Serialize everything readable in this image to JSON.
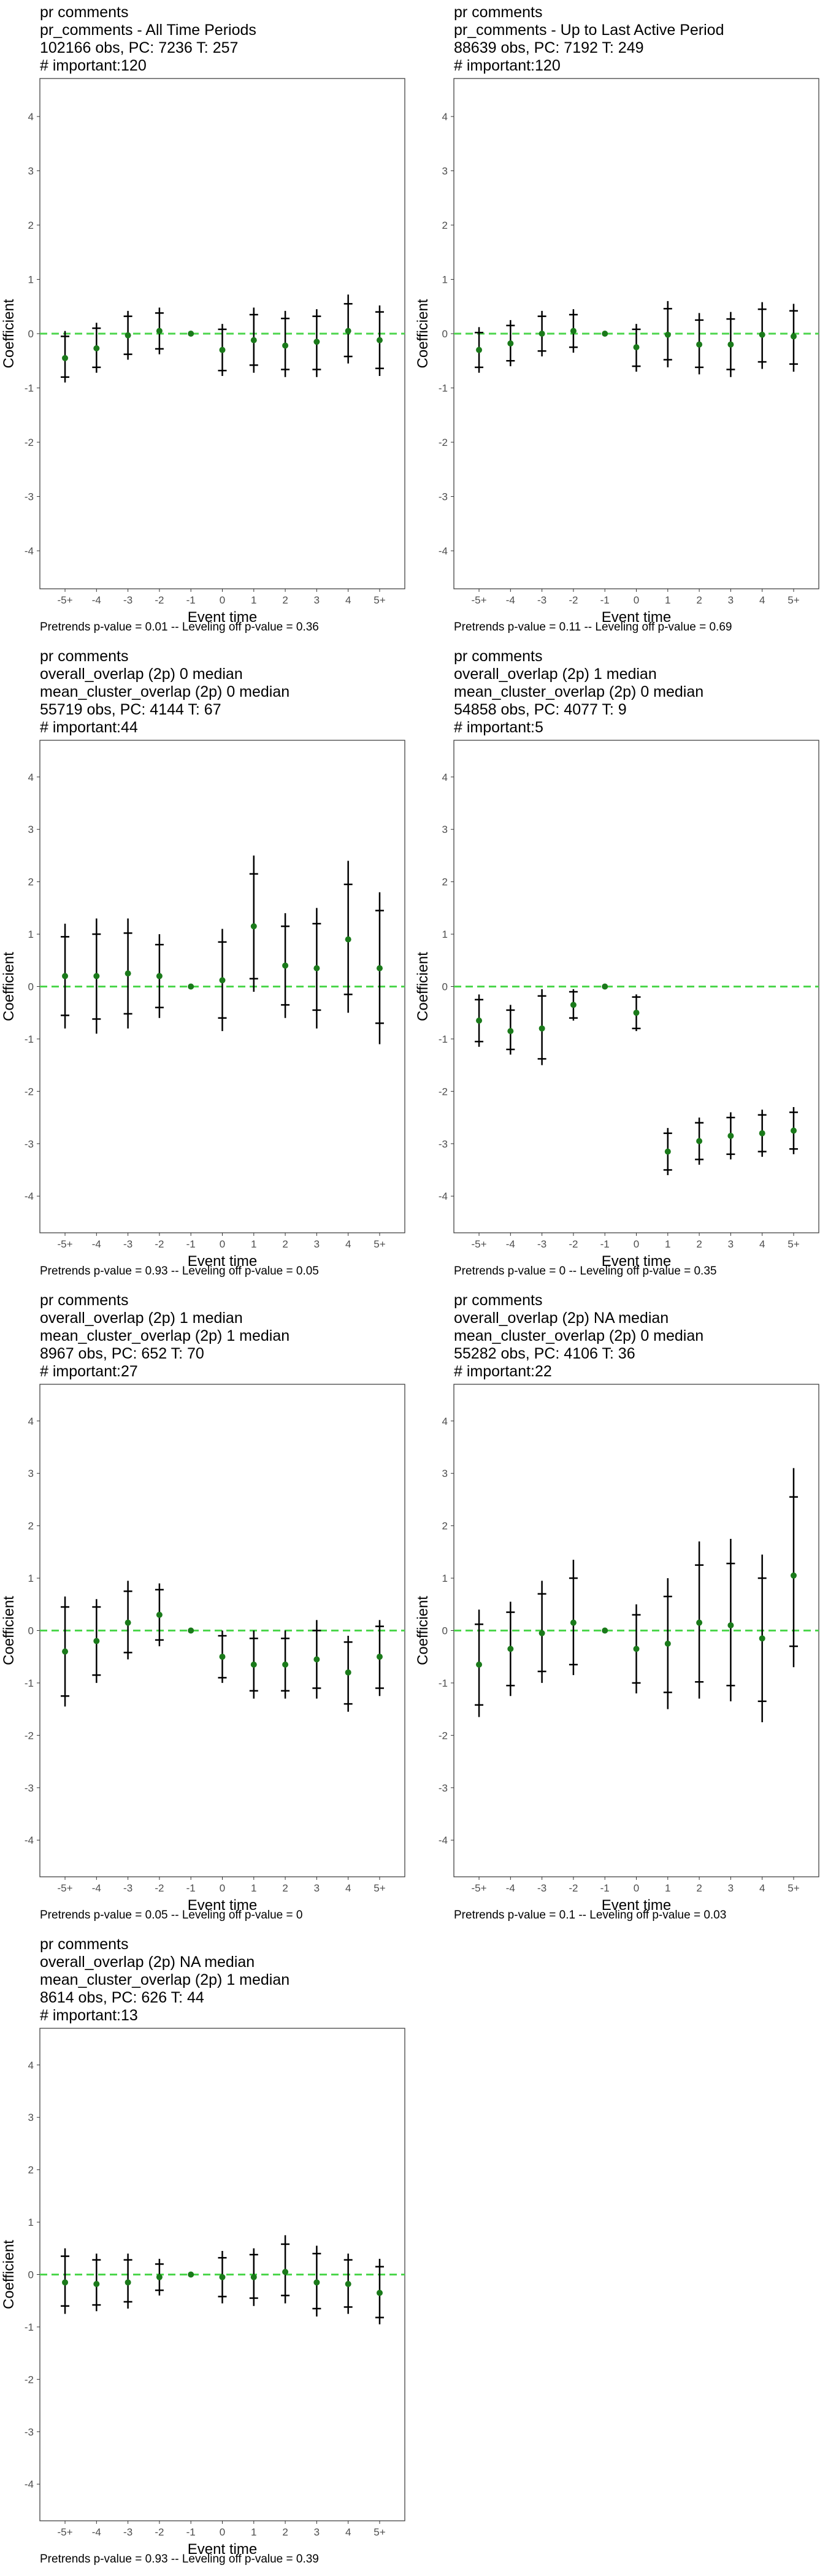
{
  "chart_data": [
    {
      "type": "scatter",
      "title_lines": [
        "pr comments",
        "pr_comments - All Time Periods",
        "102166 obs, PC: 7236 T: 257",
        "# important:120"
      ],
      "xlabel": "Event time",
      "ylabel": "Coefficient",
      "categories": [
        "-5+",
        "-4",
        "-3",
        "-2",
        "-1",
        "0",
        "1",
        "2",
        "3",
        "4",
        "5+"
      ],
      "yticks": [
        "4",
        "3",
        "2",
        "1",
        "0",
        "-1",
        "-2",
        "-3",
        "-4"
      ],
      "ylim": [
        -4.7,
        4.7
      ],
      "estimate": [
        -0.45,
        -0.27,
        -0.03,
        0.05,
        0,
        -0.3,
        -0.12,
        -0.22,
        -0.15,
        0.05,
        -0.12
      ],
      "ci95": [
        [
          -0.9,
          0.05
        ],
        [
          -0.72,
          0.2
        ],
        [
          -0.48,
          0.42
        ],
        [
          -0.38,
          0.48
        ],
        [
          0,
          0
        ],
        [
          -0.78,
          0.18
        ],
        [
          -0.72,
          0.48
        ],
        [
          -0.8,
          0.42
        ],
        [
          -0.8,
          0.45
        ],
        [
          -0.55,
          0.72
        ],
        [
          -0.78,
          0.52
        ]
      ],
      "ci90": [
        [
          -0.8,
          -0.05
        ],
        [
          -0.62,
          0.1
        ],
        [
          -0.38,
          0.32
        ],
        [
          -0.28,
          0.38
        ],
        [
          0,
          0
        ],
        [
          -0.68,
          0.08
        ],
        [
          -0.58,
          0.35
        ],
        [
          -0.66,
          0.28
        ],
        [
          -0.66,
          0.32
        ],
        [
          -0.42,
          0.55
        ],
        [
          -0.64,
          0.4
        ]
      ],
      "reference_line": 0,
      "footnote": "Pretrends p-value = 0.01 -- Leveling off p-value = 0.36"
    },
    {
      "type": "scatter",
      "title_lines": [
        "pr comments",
        "pr_comments - Up to Last Active Period",
        "88639 obs, PC: 7192 T: 249",
        "# important:120"
      ],
      "xlabel": "Event time",
      "ylabel": "Coefficient",
      "categories": [
        "-5+",
        "-4",
        "-3",
        "-2",
        "-1",
        "0",
        "1",
        "2",
        "3",
        "4",
        "5+"
      ],
      "yticks": [
        "4",
        "3",
        "2",
        "1",
        "0",
        "-1",
        "-2",
        "-3",
        "-4"
      ],
      "ylim": [
        -4.7,
        4.7
      ],
      "estimate": [
        -0.3,
        -0.18,
        0.0,
        0.05,
        0,
        -0.25,
        -0.02,
        -0.2,
        -0.2,
        -0.02,
        -0.05
      ],
      "ci95": [
        [
          -0.72,
          0.12
        ],
        [
          -0.6,
          0.25
        ],
        [
          -0.42,
          0.42
        ],
        [
          -0.35,
          0.45
        ],
        [
          0,
          0
        ],
        [
          -0.7,
          0.18
        ],
        [
          -0.62,
          0.6
        ],
        [
          -0.75,
          0.38
        ],
        [
          -0.8,
          0.4
        ],
        [
          -0.65,
          0.58
        ],
        [
          -0.7,
          0.55
        ]
      ],
      "ci90": [
        [
          -0.62,
          0.02
        ],
        [
          -0.5,
          0.15
        ],
        [
          -0.32,
          0.32
        ],
        [
          -0.25,
          0.35
        ],
        [
          0,
          0
        ],
        [
          -0.6,
          0.08
        ],
        [
          -0.48,
          0.46
        ],
        [
          -0.62,
          0.25
        ],
        [
          -0.66,
          0.27
        ],
        [
          -0.52,
          0.45
        ],
        [
          -0.56,
          0.42
        ]
      ],
      "reference_line": 0,
      "footnote": "Pretrends p-value = 0.11 -- Leveling off p-value = 0.69"
    },
    {
      "type": "scatter",
      "title_lines": [
        "pr comments",
        "overall_overlap (2p) 0 median",
        "mean_cluster_overlap (2p) 0 median",
        "55719 obs, PC: 4144 T: 67",
        "# important:44"
      ],
      "xlabel": "Event time",
      "ylabel": "Coefficient",
      "categories": [
        "-5+",
        "-4",
        "-3",
        "-2",
        "-1",
        "0",
        "1",
        "2",
        "3",
        "4",
        "5+"
      ],
      "yticks": [
        "4",
        "3",
        "2",
        "1",
        "0",
        "-1",
        "-2",
        "-3",
        "-4"
      ],
      "ylim": [
        -4.7,
        4.7
      ],
      "estimate": [
        0.2,
        0.2,
        0.25,
        0.2,
        0,
        0.12,
        1.15,
        0.4,
        0.35,
        0.9,
        0.35
      ],
      "ci95": [
        [
          -0.8,
          1.2
        ],
        [
          -0.9,
          1.3
        ],
        [
          -0.8,
          1.3
        ],
        [
          -0.6,
          1.0
        ],
        [
          0,
          0
        ],
        [
          -0.85,
          1.1
        ],
        [
          -0.1,
          2.5
        ],
        [
          -0.6,
          1.4
        ],
        [
          -0.8,
          1.5
        ],
        [
          -0.5,
          2.4
        ],
        [
          -1.1,
          1.8
        ]
      ],
      "ci90": [
        [
          -0.55,
          0.95
        ],
        [
          -0.62,
          1.0
        ],
        [
          -0.52,
          1.02
        ],
        [
          -0.4,
          0.8
        ],
        [
          0,
          0
        ],
        [
          -0.6,
          0.85
        ],
        [
          0.15,
          2.15
        ],
        [
          -0.35,
          1.15
        ],
        [
          -0.45,
          1.2
        ],
        [
          -0.15,
          1.95
        ],
        [
          -0.7,
          1.45
        ]
      ],
      "reference_line": 0,
      "footnote": "Pretrends p-value = 0.93 -- Leveling off p-value = 0.05"
    },
    {
      "type": "scatter",
      "title_lines": [
        "pr comments",
        "overall_overlap (2p) 1 median",
        "mean_cluster_overlap (2p) 0 median",
        "54858 obs, PC: 4077 T: 9",
        "# important:5"
      ],
      "xlabel": "Event time",
      "ylabel": "Coefficient",
      "categories": [
        "-5+",
        "-4",
        "-3",
        "-2",
        "-1",
        "0",
        "1",
        "2",
        "3",
        "4",
        "5+"
      ],
      "yticks": [
        "4",
        "3",
        "2",
        "1",
        "0",
        "-1",
        "-2",
        "-3",
        "-4"
      ],
      "ylim": [
        -4.7,
        4.7
      ],
      "estimate": [
        -0.65,
        -0.85,
        -0.8,
        -0.35,
        0,
        -0.5,
        -3.15,
        -2.95,
        -2.85,
        -2.8,
        -2.75
      ],
      "ci95": [
        [
          -1.15,
          -0.15
        ],
        [
          -1.3,
          -0.35
        ],
        [
          -1.5,
          -0.05
        ],
        [
          -0.65,
          -0.05
        ],
        [
          0,
          0
        ],
        [
          -0.85,
          -0.15
        ],
        [
          -3.6,
          -2.7
        ],
        [
          -3.4,
          -2.5
        ],
        [
          -3.3,
          -2.4
        ],
        [
          -3.25,
          -2.35
        ],
        [
          -3.2,
          -2.3
        ]
      ],
      "ci90": [
        [
          -1.05,
          -0.25
        ],
        [
          -1.2,
          -0.45
        ],
        [
          -1.38,
          -0.18
        ],
        [
          -0.6,
          -0.1
        ],
        [
          0,
          0
        ],
        [
          -0.8,
          -0.2
        ],
        [
          -3.5,
          -2.8
        ],
        [
          -3.3,
          -2.6
        ],
        [
          -3.2,
          -2.5
        ],
        [
          -3.15,
          -2.45
        ],
        [
          -3.1,
          -2.4
        ]
      ],
      "reference_line": 0,
      "footnote": "Pretrends p-value = 0 -- Leveling off p-value = 0.35"
    },
    {
      "type": "scatter",
      "title_lines": [
        "pr comments",
        "overall_overlap (2p) 1 median",
        "mean_cluster_overlap (2p) 1 median",
        "8967 obs, PC: 652 T: 70",
        "# important:27"
      ],
      "xlabel": "Event time",
      "ylabel": "Coefficient",
      "categories": [
        "-5+",
        "-4",
        "-3",
        "-2",
        "-1",
        "0",
        "1",
        "2",
        "3",
        "4",
        "5+"
      ],
      "yticks": [
        "4",
        "3",
        "2",
        "1",
        "0",
        "-1",
        "-2",
        "-3",
        "-4"
      ],
      "ylim": [
        -4.7,
        4.7
      ],
      "estimate": [
        -0.4,
        -0.2,
        0.15,
        0.3,
        0,
        -0.5,
        -0.65,
        -0.65,
        -0.55,
        -0.8,
        -0.5
      ],
      "ci95": [
        [
          -1.45,
          0.65
        ],
        [
          -1.0,
          0.6
        ],
        [
          -0.55,
          0.95
        ],
        [
          -0.3,
          0.9
        ],
        [
          0,
          0
        ],
        [
          -1.0,
          0.0
        ],
        [
          -1.3,
          0.0
        ],
        [
          -1.3,
          0.0
        ],
        [
          -1.3,
          0.2
        ],
        [
          -1.55,
          -0.1
        ],
        [
          -1.25,
          0.2
        ]
      ],
      "ci90": [
        [
          -1.25,
          0.45
        ],
        [
          -0.85,
          0.45
        ],
        [
          -0.42,
          0.75
        ],
        [
          -0.18,
          0.78
        ],
        [
          0,
          0
        ],
        [
          -0.9,
          -0.1
        ],
        [
          -1.15,
          -0.15
        ],
        [
          -1.15,
          -0.15
        ],
        [
          -1.1,
          0.0
        ],
        [
          -1.4,
          -0.22
        ],
        [
          -1.1,
          0.08
        ]
      ],
      "reference_line": 0,
      "footnote": "Pretrends p-value = 0.05 -- Leveling off p-value = 0"
    },
    {
      "type": "scatter",
      "title_lines": [
        "pr comments",
        "overall_overlap (2p) NA median",
        "mean_cluster_overlap (2p) 0 median",
        "55282 obs, PC: 4106 T: 36",
        "# important:22"
      ],
      "xlabel": "Event time",
      "ylabel": "Coefficient",
      "categories": [
        "-5+",
        "-4",
        "-3",
        "-2",
        "-1",
        "0",
        "1",
        "2",
        "3",
        "4",
        "5+"
      ],
      "yticks": [
        "4",
        "3",
        "2",
        "1",
        "0",
        "-1",
        "-2",
        "-3",
        "-4"
      ],
      "ylim": [
        -4.7,
        4.7
      ],
      "estimate": [
        -0.65,
        -0.35,
        -0.05,
        0.15,
        0,
        -0.35,
        -0.25,
        0.15,
        0.1,
        -0.15,
        1.05
      ],
      "ci95": [
        [
          -1.65,
          0.4
        ],
        [
          -1.25,
          0.55
        ],
        [
          -1.0,
          0.95
        ],
        [
          -0.85,
          1.35
        ],
        [
          0,
          0
        ],
        [
          -1.2,
          0.5
        ],
        [
          -1.5,
          1.0
        ],
        [
          -1.3,
          1.7
        ],
        [
          -1.35,
          1.75
        ],
        [
          -1.75,
          1.45
        ],
        [
          -0.7,
          3.1
        ]
      ],
      "ci90": [
        [
          -1.42,
          0.12
        ],
        [
          -1.05,
          0.35
        ],
        [
          -0.78,
          0.7
        ],
        [
          -0.65,
          1.0
        ],
        [
          0,
          0
        ],
        [
          -1.0,
          0.3
        ],
        [
          -1.18,
          0.65
        ],
        [
          -0.98,
          1.25
        ],
        [
          -1.05,
          1.28
        ],
        [
          -1.35,
          1.0
        ],
        [
          -0.3,
          2.55
        ]
      ],
      "reference_line": 0,
      "footnote": "Pretrends p-value = 0.1 -- Leveling off p-value = 0.03"
    },
    {
      "type": "scatter",
      "title_lines": [
        "pr comments",
        "overall_overlap (2p) NA median",
        "mean_cluster_overlap (2p) 1 median",
        "8614 obs, PC: 626 T: 44",
        "# important:13"
      ],
      "xlabel": "Event time",
      "ylabel": "Coefficient",
      "categories": [
        "-5+",
        "-4",
        "-3",
        "-2",
        "-1",
        "0",
        "1",
        "2",
        "3",
        "4",
        "5+"
      ],
      "yticks": [
        "4",
        "3",
        "2",
        "1",
        "0",
        "-1",
        "-2",
        "-3",
        "-4"
      ],
      "ylim": [
        -4.7,
        4.7
      ],
      "estimate": [
        -0.15,
        -0.18,
        -0.15,
        -0.05,
        0,
        -0.05,
        -0.05,
        0.05,
        -0.15,
        -0.18,
        -0.35
      ],
      "ci95": [
        [
          -0.75,
          0.5
        ],
        [
          -0.7,
          0.4
        ],
        [
          -0.65,
          0.4
        ],
        [
          -0.4,
          0.3
        ],
        [
          0,
          0
        ],
        [
          -0.55,
          0.45
        ],
        [
          -0.6,
          0.5
        ],
        [
          -0.55,
          0.75
        ],
        [
          -0.8,
          0.55
        ],
        [
          -0.75,
          0.4
        ],
        [
          -0.95,
          0.3
        ]
      ],
      "ci90": [
        [
          -0.6,
          0.35
        ],
        [
          -0.58,
          0.28
        ],
        [
          -0.52,
          0.28
        ],
        [
          -0.3,
          0.2
        ],
        [
          0,
          0
        ],
        [
          -0.42,
          0.32
        ],
        [
          -0.45,
          0.38
        ],
        [
          -0.4,
          0.58
        ],
        [
          -0.65,
          0.4
        ],
        [
          -0.62,
          0.28
        ],
        [
          -0.82,
          0.15
        ]
      ],
      "reference_line": 0,
      "footnote": "Pretrends p-value = 0.93 -- Leveling off p-value = 0.39"
    }
  ],
  "colors": {
    "estimate_point": "#1a7a1a",
    "ci_line": "#000000",
    "reference_line": "#4cd64c",
    "panel_border": "#333333",
    "tick_text": "#4d4d4d"
  }
}
